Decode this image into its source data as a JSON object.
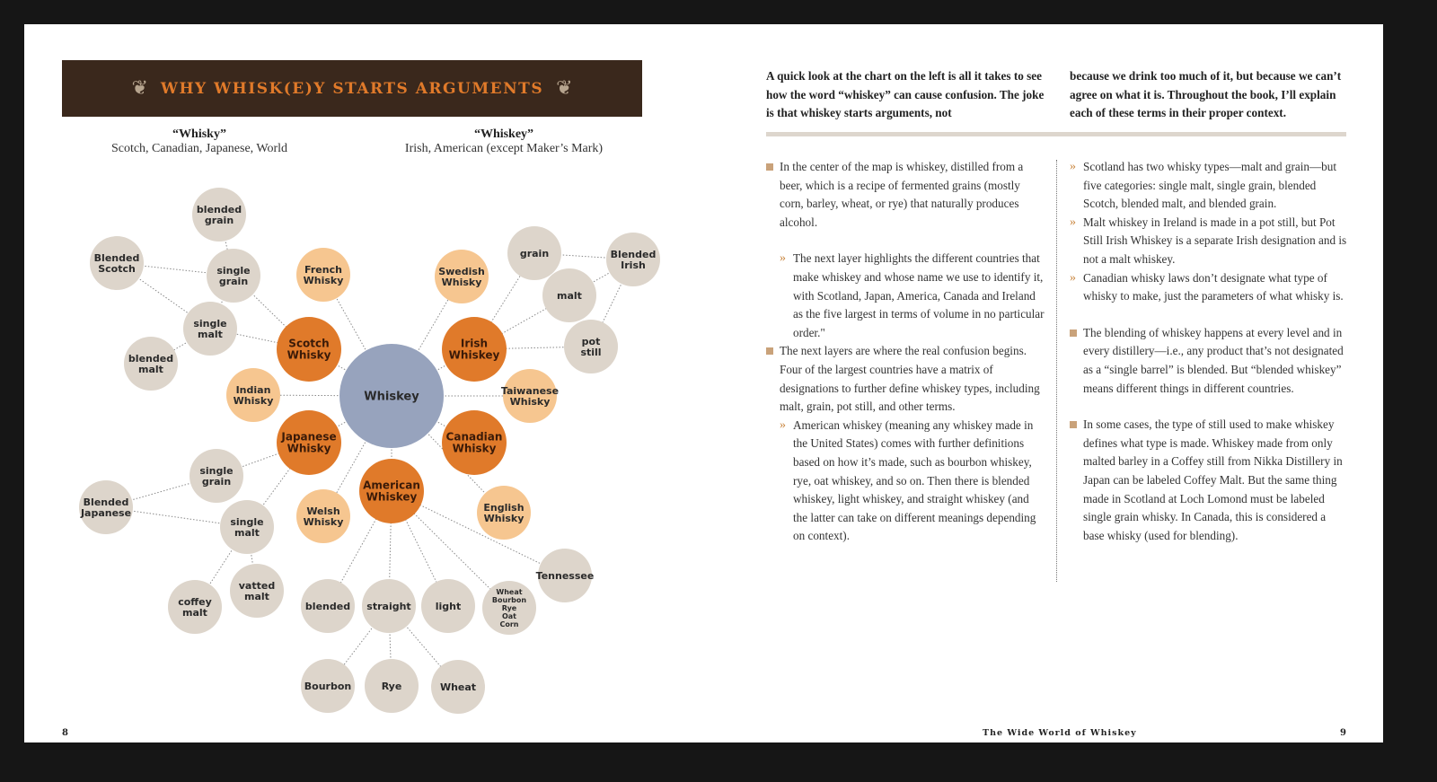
{
  "banner": {
    "title": "WHY WHISK(E)Y STARTS ARGUMENTS"
  },
  "headers": [
    {
      "title": "“Whisky”",
      "sub": "Scotch, Canadian, Japanese, World"
    },
    {
      "title": "“Whiskey”",
      "sub": "Irish, American (except Maker’s Mark)"
    }
  ],
  "colors": {
    "center": "#97a3bd",
    "country_major": "#e07a2a",
    "country_minor": "#f6c690",
    "term": "#ddd5cb",
    "banner": "#3a281c",
    "banner_text": "#e07a2a"
  },
  "diagram": {
    "nodes": [
      {
        "id": "whiskey",
        "label": "Whiskey",
        "kind": "center"
      },
      {
        "id": "scotch",
        "label": "Scotch Whisky",
        "kind": "major"
      },
      {
        "id": "irish",
        "label": "Irish Whiskey",
        "kind": "major"
      },
      {
        "id": "japanese",
        "label": "Japanese Whisky",
        "kind": "major"
      },
      {
        "id": "canadian",
        "label": "Canadian Whisky",
        "kind": "major"
      },
      {
        "id": "american",
        "label": "American Whiskey",
        "kind": "major"
      },
      {
        "id": "french",
        "label": "French Whisky",
        "kind": "minor"
      },
      {
        "id": "swedish",
        "label": "Swedish Whisky",
        "kind": "minor"
      },
      {
        "id": "indian",
        "label": "Indian Whisky",
        "kind": "minor"
      },
      {
        "id": "taiwanese",
        "label": "Taiwanese Whisky",
        "kind": "minor"
      },
      {
        "id": "welsh",
        "label": "Welsh Whisky",
        "kind": "minor"
      },
      {
        "id": "english",
        "label": "English Whisky",
        "kind": "minor"
      },
      {
        "id": "s_bgrain",
        "label": "blended grain",
        "kind": "term"
      },
      {
        "id": "s_bscotch",
        "label": "Blended Scotch",
        "kind": "term"
      },
      {
        "id": "s_sgrain",
        "label": "single grain",
        "kind": "term"
      },
      {
        "id": "s_smalt",
        "label": "single malt",
        "kind": "term"
      },
      {
        "id": "s_bmalt",
        "label": "blended malt",
        "kind": "term"
      },
      {
        "id": "i_grain",
        "label": "grain",
        "kind": "term"
      },
      {
        "id": "i_birish",
        "label": "Blended Irish",
        "kind": "term"
      },
      {
        "id": "i_malt",
        "label": "malt",
        "kind": "term"
      },
      {
        "id": "i_pot",
        "label": "pot still",
        "kind": "term"
      },
      {
        "id": "j_sgrain",
        "label": "single grain",
        "kind": "term"
      },
      {
        "id": "j_bjap",
        "label": "Blended Japanese",
        "kind": "term"
      },
      {
        "id": "j_smalt",
        "label": "single malt",
        "kind": "term"
      },
      {
        "id": "j_coffey",
        "label": "coffey malt",
        "kind": "term"
      },
      {
        "id": "j_vatted",
        "label": "vatted malt",
        "kind": "term"
      },
      {
        "id": "a_blended",
        "label": "blended",
        "kind": "term"
      },
      {
        "id": "a_straight",
        "label": "straight",
        "kind": "term"
      },
      {
        "id": "a_light",
        "label": "light",
        "kind": "term"
      },
      {
        "id": "a_list",
        "label": "Wheat Bourbon Rye Oat Corn",
        "kind": "term_small"
      },
      {
        "id": "a_tenn",
        "label": "Tennessee",
        "kind": "term"
      },
      {
        "id": "a_bourbon",
        "label": "Bourbon",
        "kind": "term"
      },
      {
        "id": "a_rye",
        "label": "Rye",
        "kind": "term"
      },
      {
        "id": "a_wheat",
        "label": "Wheat",
        "kind": "term"
      }
    ],
    "edges": [
      [
        "whiskey",
        "scotch"
      ],
      [
        "whiskey",
        "irish"
      ],
      [
        "whiskey",
        "japanese"
      ],
      [
        "whiskey",
        "canadian"
      ],
      [
        "whiskey",
        "american"
      ],
      [
        "whiskey",
        "french"
      ],
      [
        "whiskey",
        "swedish"
      ],
      [
        "whiskey",
        "indian"
      ],
      [
        "whiskey",
        "taiwanese"
      ],
      [
        "whiskey",
        "welsh"
      ],
      [
        "whiskey",
        "english"
      ],
      [
        "scotch",
        "s_sgrain"
      ],
      [
        "scotch",
        "s_smalt"
      ],
      [
        "s_bgrain",
        "s_sgrain"
      ],
      [
        "s_bscotch",
        "s_sgrain"
      ],
      [
        "s_bscotch",
        "s_smalt"
      ],
      [
        "s_smalt",
        "s_bmalt"
      ],
      [
        "s_smalt",
        "s_sgrain"
      ],
      [
        "irish",
        "i_grain"
      ],
      [
        "irish",
        "i_malt"
      ],
      [
        "irish",
        "i_pot"
      ],
      [
        "i_birish",
        "i_grain"
      ],
      [
        "i_birish",
        "i_malt"
      ],
      [
        "i_birish",
        "i_pot"
      ],
      [
        "japanese",
        "j_sgrain"
      ],
      [
        "japanese",
        "j_smalt"
      ],
      [
        "j_bjap",
        "j_sgrain"
      ],
      [
        "j_bjap",
        "j_smalt"
      ],
      [
        "j_smalt",
        "j_coffey"
      ],
      [
        "j_smalt",
        "j_vatted"
      ],
      [
        "american",
        "a_blended"
      ],
      [
        "american",
        "a_straight"
      ],
      [
        "american",
        "a_light"
      ],
      [
        "american",
        "a_list"
      ],
      [
        "american",
        "a_tenn"
      ],
      [
        "a_straight",
        "a_bourbon"
      ],
      [
        "a_straight",
        "a_rye"
      ],
      [
        "a_straight",
        "a_wheat"
      ]
    ]
  },
  "intro": {
    "left": "A quick look at the chart on the left is all it takes to see how the word “whiskey” can cause confusion. The joke is that whiskey starts arguments, not",
    "right": "because we drink too much of it, but because we can’t agree on what it is. Throughout the book, I’ll explain each of these terms in their proper context."
  },
  "col1": [
    {
      "type": "bullet",
      "text": "In the center of the map is whiskey, distilled from a beer, which is a recipe of fermented grains (mostly corn, barley, wheat, or rye) that naturally produces alcohol."
    },
    {
      "type": "sub",
      "gap": true,
      "text": "The next layer highlights the different countries that make whiskey and whose name we use to identify it, with Scotland, Japan, America, Canada and Ireland as the five largest in terms of volume in no particular order.\""
    },
    {
      "type": "bullet",
      "nogap": true,
      "text": "The next layers are where the real confusion begins. Four of the largest countries have a matrix of designations to further define whiskey types, including malt, grain, pot still, and other terms."
    },
    {
      "type": "sub",
      "text": "American whiskey (meaning any whiskey made in the United States) comes with further definitions based on how it’s made, such as bourbon whiskey, rye, oat whiskey, and so on. Then there is blended whiskey, light whiskey, and straight whiskey (and the latter can take on different meanings depending on context)."
    }
  ],
  "col2": [
    {
      "type": "chev",
      "text": "Scotland has two whisky types—malt and grain—but five categories: single malt, single grain, blended Scotch, blended malt, and blended grain."
    },
    {
      "type": "chev",
      "text": "Malt whiskey in Ireland is made in a pot still, but Pot Still Irish Whiskey is a separate Irish designation and is not a malt whiskey."
    },
    {
      "type": "chev",
      "gap": true,
      "text": "Canadian whisky laws don’t designate what type of whisky to make, just the parameters of what whisky is."
    },
    {
      "type": "bullet",
      "text": "The blending of whiskey happens at every level and in every distillery—i.e., any product that’s not designated as a “single barrel” is blended. But “blended whiskey” means different things in different countries."
    },
    {
      "type": "bullet",
      "text": "In some cases, the type of still used to make whiskey defines what type is made. Whiskey made from only malted barley in a Coffey still from Nikka Distillery in Japan can be labeled Coffey Malt. But the same thing made in Scotland at Loch Lomond must be labeled single grain whisky. In Canada, this is considered a base whisky (used for blending)."
    }
  ],
  "footer": {
    "left_page": "8",
    "title": "The Wide World of Whiskey",
    "right_page": "9"
  }
}
